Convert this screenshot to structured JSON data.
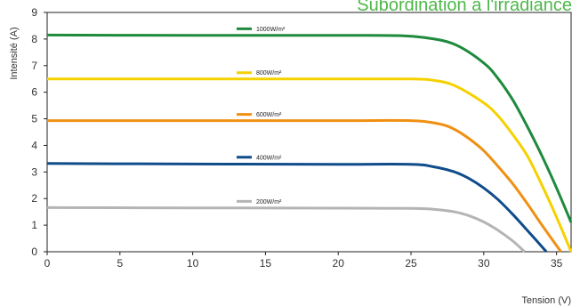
{
  "chart_data": {
    "type": "line",
    "title": "Subordination à l'irradiance",
    "xlabel": "Tension (V)",
    "ylabel": "Intensité (A)",
    "xlim": [
      0,
      36
    ],
    "ylim": [
      0,
      9
    ],
    "xticks": [
      "0",
      "5",
      "10",
      "15",
      "20",
      "25",
      "30",
      "35"
    ],
    "yticks": [
      "0",
      "1",
      "2",
      "3",
      "4",
      "5",
      "6",
      "7",
      "8",
      "9"
    ],
    "grid": false,
    "legend_placement": "inline",
    "series": [
      {
        "name": "1000W/m²",
        "color": "#1e8a3c",
        "x": [
          0,
          10,
          20,
          24,
          26,
          28,
          30,
          31,
          32,
          33,
          34,
          35,
          36
        ],
        "y": [
          8.15,
          8.14,
          8.14,
          8.13,
          8.05,
          7.8,
          7.1,
          6.5,
          5.7,
          4.7,
          3.6,
          2.4,
          1.1
        ]
      },
      {
        "name": "800W/m²",
        "color": "#f5d100",
        "x": [
          0,
          10,
          20,
          25,
          26.5,
          28,
          30,
          31,
          32,
          33,
          34,
          35,
          36
        ],
        "y": [
          6.5,
          6.5,
          6.5,
          6.5,
          6.45,
          6.25,
          5.6,
          5.1,
          4.4,
          3.6,
          2.5,
          1.3,
          0
        ]
      },
      {
        "name": "600W/m²",
        "color": "#ef9012",
        "x": [
          0,
          10,
          20,
          25,
          27,
          28,
          29,
          30,
          31,
          32,
          33,
          34,
          35.3
        ],
        "y": [
          4.93,
          4.93,
          4.93,
          4.93,
          4.8,
          4.6,
          4.25,
          3.8,
          3.2,
          2.55,
          1.8,
          1.0,
          0
        ]
      },
      {
        "name": "400W/m²",
        "color": "#0f4c8a",
        "x": [
          0,
          10,
          20,
          25,
          26.5,
          28,
          29,
          30,
          31,
          32,
          33,
          34.3
        ],
        "y": [
          3.32,
          3.3,
          3.29,
          3.29,
          3.2,
          3.0,
          2.75,
          2.4,
          1.95,
          1.4,
          0.8,
          0
        ]
      },
      {
        "name": "200W/m²",
        "color": "#b4b4b4",
        "x": [
          0,
          10,
          20,
          25,
          26.5,
          28,
          29,
          30,
          31,
          32,
          32.8
        ],
        "y": [
          1.66,
          1.65,
          1.64,
          1.63,
          1.6,
          1.5,
          1.35,
          1.12,
          0.8,
          0.4,
          0
        ]
      }
    ]
  }
}
